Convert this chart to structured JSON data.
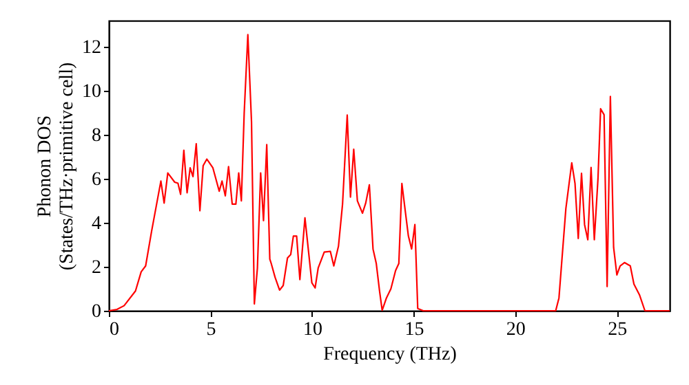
{
  "chart_data": {
    "type": "line",
    "xlabel": "Frequency (THz)",
    "ylabel": "Phonon DOS\n(States/THz·primitive cell)",
    "xlim": [
      0,
      27.6
    ],
    "ylim": [
      0,
      13.2
    ],
    "xticks": [
      0,
      5,
      10,
      15,
      20,
      25
    ],
    "yticks": [
      0,
      2,
      4,
      6,
      8,
      10,
      12
    ],
    "grid": false,
    "series": [
      {
        "color": "#ff0000",
        "x": [
          0,
          0.4,
          0.75,
          1.31,
          1.59,
          1.81,
          2.1,
          2.56,
          2.72,
          2.9,
          3.24,
          3.4,
          3.53,
          3.69,
          3.85,
          4.0,
          4.14,
          4.3,
          4.48,
          4.64,
          4.82,
          5.12,
          5.43,
          5.57,
          5.73,
          5.89,
          6.07,
          6.25,
          6.39,
          6.52,
          6.66,
          6.84,
          7.02,
          7.16,
          7.31,
          7.47,
          7.61,
          7.77,
          7.92,
          7.99,
          8.18,
          8.4,
          8.58,
          8.79,
          8.95,
          9.08,
          9.24,
          9.4,
          9.65,
          9.99,
          10.15,
          10.3,
          10.6,
          10.9,
          11.07,
          11.3,
          11.5,
          11.73,
          11.89,
          12.05,
          12.23,
          12.48,
          12.64,
          12.82,
          13.0,
          13.16,
          13.32,
          13.45,
          13.66,
          13.88,
          14.11,
          14.27,
          14.42,
          14.6,
          14.74,
          14.9,
          15.06,
          15.2,
          15.47,
          21.99,
          22.15,
          22.49,
          22.78,
          22.94,
          23.1,
          23.26,
          23.41,
          23.57,
          23.73,
          23.89,
          24.07,
          24.2,
          24.37,
          24.52,
          24.68,
          24.84,
          25.0,
          25.16,
          25.38,
          25.66,
          25.84,
          26.11,
          26.38,
          27.6
        ],
        "values": [
          0,
          0.06,
          0.23,
          0.9,
          1.77,
          2.04,
          3.6,
          5.9,
          4.9,
          6.27,
          5.85,
          5.8,
          5.3,
          7.3,
          5.37,
          6.5,
          6.1,
          7.6,
          4.55,
          6.6,
          6.9,
          6.5,
          5.44,
          5.9,
          5.23,
          6.56,
          4.85,
          4.85,
          6.27,
          5.0,
          9.0,
          12.56,
          8.6,
          0.31,
          1.94,
          6.27,
          4.1,
          7.56,
          2.35,
          2.15,
          1.52,
          0.94,
          1.15,
          2.4,
          2.56,
          3.4,
          3.4,
          1.42,
          4.23,
          1.27,
          1.04,
          1.94,
          2.67,
          2.7,
          2.04,
          2.94,
          4.85,
          8.9,
          5.17,
          7.35,
          5.0,
          4.44,
          4.9,
          5.73,
          2.81,
          2.15,
          0.9,
          0.02,
          0.58,
          1.0,
          1.83,
          2.15,
          5.79,
          4.44,
          3.4,
          2.81,
          3.92,
          0.1,
          0,
          0,
          0.58,
          4.65,
          6.73,
          5.79,
          3.29,
          6.25,
          3.92,
          3.23,
          6.52,
          3.23,
          6.0,
          9.19,
          8.92,
          1.1,
          9.75,
          2.88,
          1.63,
          2.04,
          2.19,
          2.04,
          1.21,
          0.73,
          0,
          0
        ]
      }
    ]
  }
}
